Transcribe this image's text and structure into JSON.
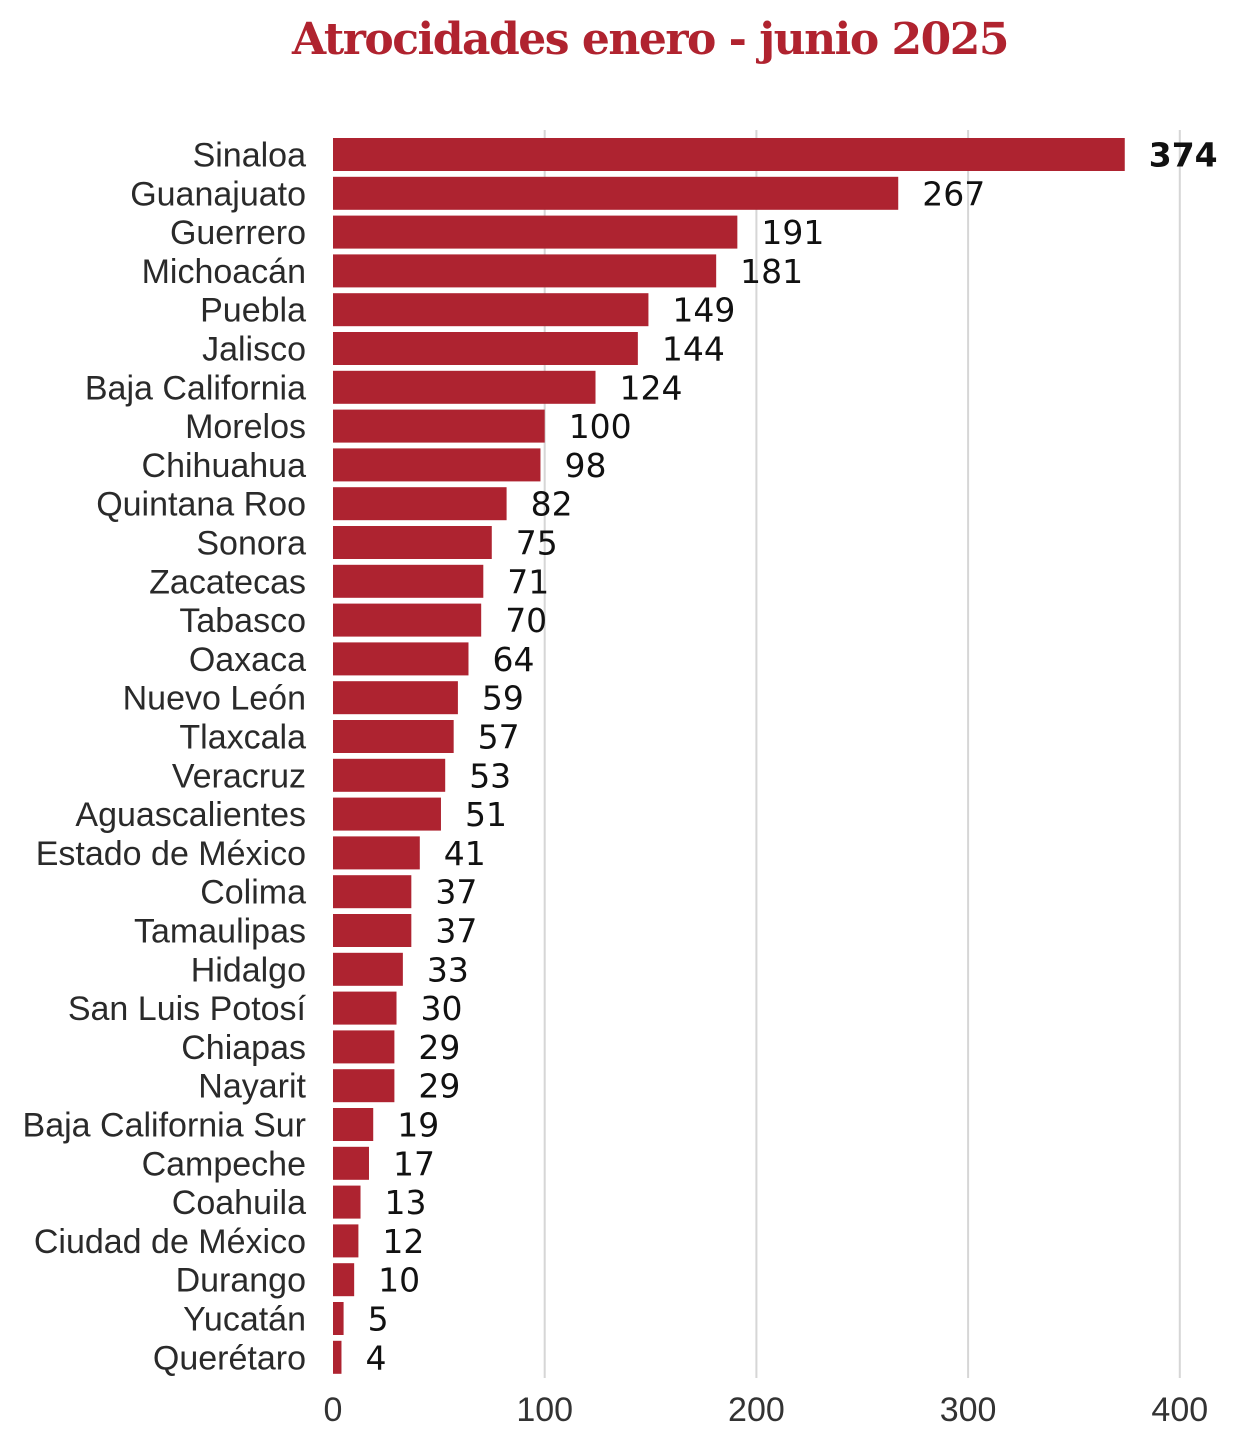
{
  "colors": {
    "bar": "#ae2330",
    "title": "#b0232f",
    "grid": "#d6d6d6"
  },
  "chart_data": {
    "type": "bar",
    "orientation": "horizontal",
    "title": "Atrocidades enero - junio 2025",
    "xlabel": "",
    "ylabel": "",
    "xlim": [
      0,
      400
    ],
    "ticks": [
      0,
      100,
      200,
      300,
      400
    ],
    "grid": "vertical",
    "categories": [
      "Sinaloa",
      "Guanajuato",
      "Guerrero",
      "Michoacán",
      "Puebla",
      "Jalisco",
      "Baja California",
      "Morelos",
      "Chihuahua",
      "Quintana Roo",
      "Sonora",
      "Zacatecas",
      "Tabasco",
      "Oaxaca",
      "Nuevo León",
      "Tlaxcala",
      "Veracruz",
      "Aguascalientes",
      "Estado de México",
      "Colima",
      "Tamaulipas",
      "Hidalgo",
      "San Luis Potosí",
      "Chiapas",
      "Nayarit",
      "Baja California Sur",
      "Campeche",
      "Coahuila",
      "Ciudad de México",
      "Durango",
      "Yucatán",
      "Querétaro"
    ],
    "values": [
      374,
      267,
      191,
      181,
      149,
      144,
      124,
      100,
      98,
      82,
      75,
      71,
      70,
      64,
      59,
      57,
      53,
      51,
      41,
      37,
      37,
      33,
      30,
      29,
      29,
      19,
      17,
      13,
      12,
      10,
      5,
      4
    ]
  }
}
